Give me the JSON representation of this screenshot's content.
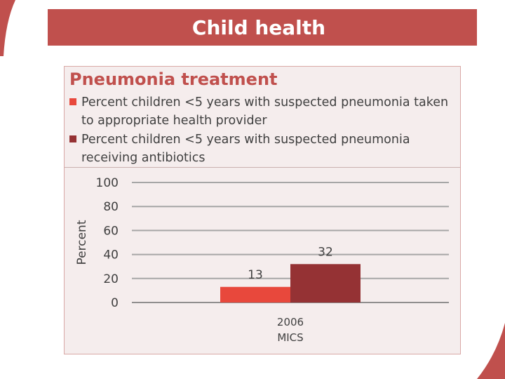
{
  "slide": {
    "title": "Child health",
    "accent_color": "#c0504d"
  },
  "chart_data": {
    "type": "bar",
    "title": "Pneumonia treatment",
    "categories": [
      "2006\nMICS"
    ],
    "series": [
      {
        "name": "Percent children <5 years with suspected pneumonia taken to appropriate health provider",
        "values": [
          13
        ],
        "color": "#e8483c"
      },
      {
        "name": "Percent children <5 years with suspected pneumonia receiving antibiotics",
        "values": [
          32
        ],
        "color": "#953234"
      }
    ],
    "xlabel": "",
    "ylabel": "Percent",
    "ylim": [
      0,
      100
    ],
    "yticks": [
      0,
      20,
      40,
      60,
      80,
      100
    ],
    "grid": true,
    "legend_position": "top"
  }
}
